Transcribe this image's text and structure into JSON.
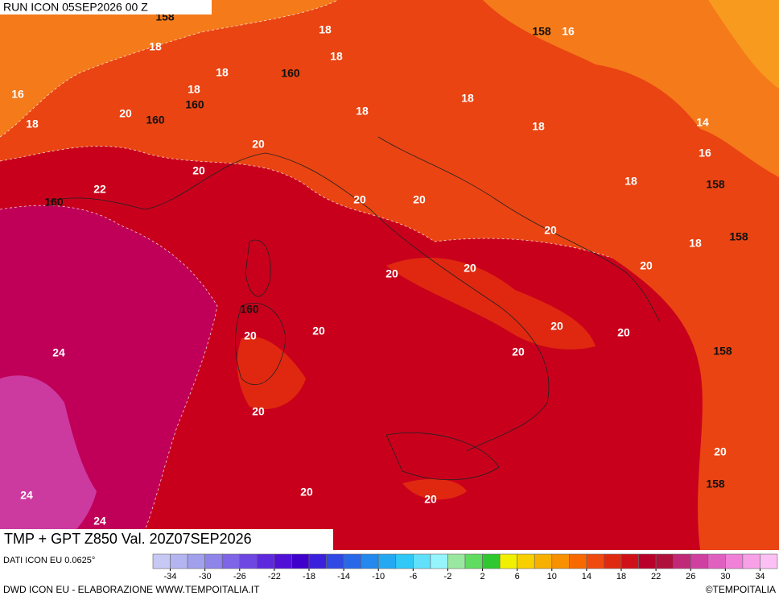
{
  "header": {
    "title": "RUN ICON 05SEP2026 00 Z"
  },
  "map": {
    "title": "TMP + GPT Z850 Val. 20Z07SEP2026",
    "labels": [
      "158",
      "18",
      "16",
      "18",
      "20",
      "18",
      "18",
      "160",
      "160",
      "18",
      "18",
      "160",
      "18",
      "18",
      "158",
      "16",
      "18",
      "14",
      "16",
      "158",
      "18",
      "18",
      "158",
      "20",
      "20",
      "22",
      "160",
      "20",
      "20",
      "20",
      "20",
      "20",
      "20",
      "160",
      "20",
      "20",
      "20",
      "20",
      "20",
      "158",
      "24",
      "20",
      "20",
      "158",
      "24",
      "20",
      "20",
      "24"
    ]
  },
  "colorbar": {
    "ticks": [
      -34,
      -30,
      -26,
      -22,
      -18,
      -14,
      -10,
      -6,
      -2,
      2,
      6,
      10,
      14,
      18,
      22,
      26,
      30,
      34
    ],
    "colors": [
      "#c8c8f5",
      "#b4b4f0",
      "#a0a0ec",
      "#8e84ea",
      "#7e64e6",
      "#6e46e2",
      "#5e28dc",
      "#5010d6",
      "#4000cc",
      "#3a20dc",
      "#3048e4",
      "#2a68ea",
      "#2488ee",
      "#24a8f2",
      "#30c8f6",
      "#60e0fa",
      "#96f4fc",
      "#9ae8a0",
      "#60dc60",
      "#30c830",
      "#f0f000",
      "#f8d000",
      "#f8b000",
      "#f89000",
      "#f86a00",
      "#f04a10",
      "#e02a10",
      "#d01018",
      "#b8002a",
      "#b0103c",
      "#c02878",
      "#d040a0",
      "#e060c0",
      "#f080d8",
      "#f8a0e8",
      "#fcc0f4"
    ],
    "source": "DATI ICON EU 0.0625°"
  },
  "footer": {
    "credit": "DWD ICON EU - ELABORAZIONE WWW.TEMPOITALIA.IT",
    "brand": "©TEMPOITALIA"
  }
}
